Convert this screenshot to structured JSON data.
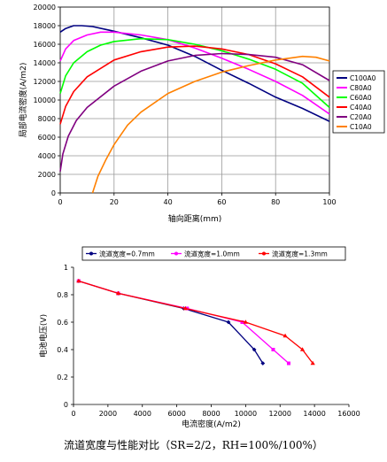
{
  "caption": "流道宽度与性能对比（SR=2/2，RH=100%/100%）",
  "chart_data": [
    {
      "type": "line",
      "title": "",
      "xlabel": "轴向距离(mm)",
      "ylabel": "局部电流密度(A/m2)",
      "xlim": [
        0,
        100
      ],
      "ylim": [
        0,
        20000
      ],
      "x_ticks": [
        "0",
        "20",
        "40",
        "60",
        "80",
        "100"
      ],
      "y_ticks": [
        "0",
        "2000",
        "4000",
        "6000",
        "8000",
        "10000",
        "12000",
        "14000",
        "16000",
        "18000",
        "20000"
      ],
      "grid": true,
      "legend_position": "right",
      "series": [
        {
          "name": "C100A0",
          "color": "#000080",
          "x": [
            0,
            2,
            5,
            8,
            12,
            20,
            30,
            40,
            50,
            60,
            70,
            80,
            90,
            100
          ],
          "y": [
            17300,
            17700,
            18000,
            18000,
            17900,
            17400,
            16700,
            15900,
            14700,
            13200,
            11800,
            10300,
            9100,
            7700
          ]
        },
        {
          "name": "C80A0",
          "color": "#ff00ff",
          "x": [
            0,
            2,
            5,
            10,
            15,
            20,
            30,
            40,
            50,
            60,
            70,
            80,
            90,
            100
          ],
          "y": [
            14200,
            15500,
            16400,
            17000,
            17300,
            17300,
            17000,
            16500,
            15600,
            14500,
            13300,
            12000,
            10500,
            8500
          ]
        },
        {
          "name": "C60A0",
          "color": "#00ff00",
          "x": [
            0,
            2,
            5,
            10,
            15,
            20,
            30,
            40,
            50,
            60,
            70,
            80,
            90,
            100
          ],
          "y": [
            10700,
            12600,
            14000,
            15200,
            15900,
            16300,
            16600,
            16500,
            16000,
            15300,
            14400,
            13300,
            11800,
            9200
          ]
        },
        {
          "name": "C40A0",
          "color": "#ff0000",
          "x": [
            0,
            2,
            5,
            10,
            20,
            30,
            40,
            50,
            60,
            70,
            80,
            90,
            100
          ],
          "y": [
            7400,
            9300,
            10900,
            12500,
            14300,
            15200,
            15700,
            15800,
            15500,
            14900,
            13900,
            12500,
            10300
          ]
        },
        {
          "name": "C20A0",
          "color": "#800080",
          "x": [
            0,
            1,
            3,
            6,
            10,
            20,
            30,
            40,
            50,
            60,
            70,
            80,
            90,
            100
          ],
          "y": [
            2300,
            4200,
            6100,
            7800,
            9200,
            11500,
            13100,
            14200,
            14800,
            15000,
            14900,
            14600,
            13800,
            12100
          ]
        },
        {
          "name": "C10A0",
          "color": "#ff8000",
          "x": [
            12,
            14,
            17,
            20,
            25,
            30,
            40,
            50,
            60,
            70,
            80,
            85,
            90,
            95,
            100
          ],
          "y": [
            0,
            1800,
            3600,
            5200,
            7300,
            8700,
            10700,
            12000,
            13000,
            13700,
            14300,
            14500,
            14700,
            14600,
            14200
          ]
        }
      ]
    },
    {
      "type": "line",
      "title": "",
      "xlabel": "电流密度(A/m2)",
      "ylabel": "电池电压(V)",
      "xlim": [
        0,
        16000
      ],
      "ylim": [
        0,
        1
      ],
      "x_ticks": [
        "0",
        "2000",
        "4000",
        "6000",
        "8000",
        "10000",
        "12000",
        "14000",
        "16000"
      ],
      "y_ticks": [
        "0",
        "0.2",
        "0.4",
        "0.6",
        "0.8",
        "1"
      ],
      "grid": false,
      "legend_position": "top",
      "series": [
        {
          "name": "流道宽度=0.7mm",
          "color": "#000080",
          "x": [
            300,
            2600,
            6400,
            9000,
            10500,
            11000
          ],
          "y": [
            0.9,
            0.81,
            0.7,
            0.6,
            0.4,
            0.3
          ]
        },
        {
          "name": "流道宽度=1.0mm",
          "color": "#ff00ff",
          "x": [
            300,
            2600,
            6600,
            9800,
            11600,
            12500
          ],
          "y": [
            0.9,
            0.81,
            0.7,
            0.6,
            0.4,
            0.3
          ]
        },
        {
          "name": "流道宽度=1.3mm",
          "color": "#ff0000",
          "x": [
            300,
            2600,
            6500,
            10000,
            12300,
            13300,
            13900
          ],
          "y": [
            0.9,
            0.81,
            0.7,
            0.6,
            0.5,
            0.4,
            0.3
          ]
        }
      ]
    }
  ]
}
